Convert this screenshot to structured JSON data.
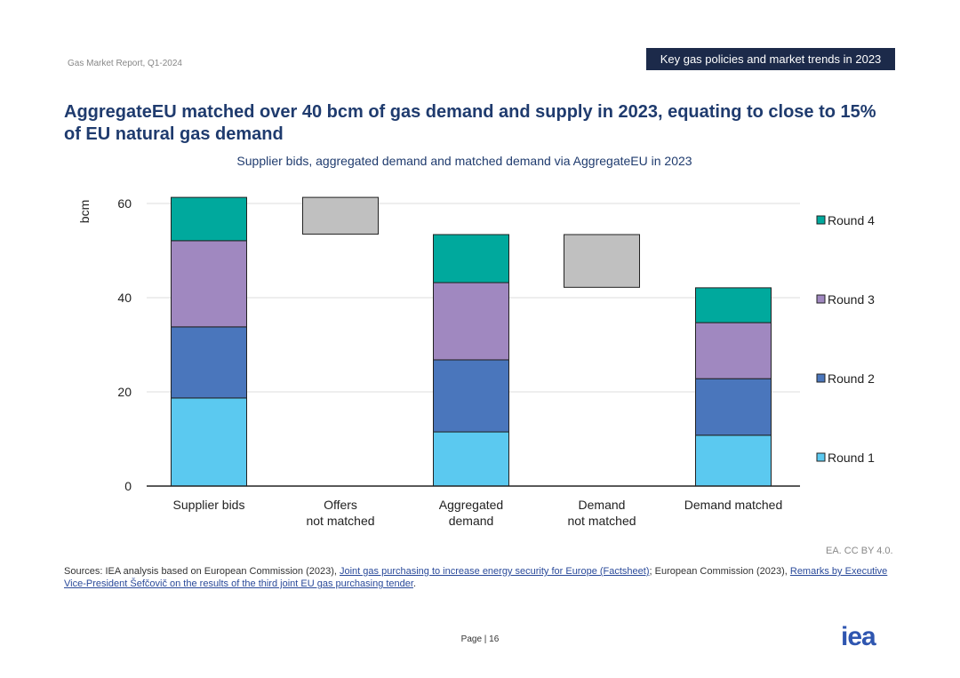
{
  "header": {
    "report": "Gas Market Report, Q1-2024",
    "section": "Key gas policies and market trends in 2023"
  },
  "title": "AggregateEU matched over 40 bcm of gas demand and supply in 2023, equating to close to 15% of EU natural gas demand",
  "chart_data": {
    "type": "bar",
    "title": "Supplier bids, aggregated demand and matched demand via AggregateEU in 2023",
    "ylabel": "bcm",
    "ylim": [
      0,
      60
    ],
    "yticks": [
      0,
      20,
      40,
      60
    ],
    "categories": [
      [
        "Supplier bids"
      ],
      [
        "Offers",
        "not matched"
      ],
      [
        "Aggregated",
        "demand"
      ],
      [
        "Demand",
        "not matched"
      ],
      [
        "Demand matched"
      ]
    ],
    "series": [
      {
        "name": "Round 1",
        "color": "#5bc9f0",
        "values": [
          18.7,
          0,
          11.5,
          0,
          10.8
        ]
      },
      {
        "name": "Round 2",
        "color": "#4a76bc",
        "values": [
          15.1,
          0,
          15.3,
          0,
          12.0
        ]
      },
      {
        "name": "Round 3",
        "color": "#a088c0",
        "values": [
          18.3,
          0,
          16.4,
          0,
          11.9
        ]
      },
      {
        "name": "Round 4",
        "color": "#00a99d",
        "values": [
          9.2,
          0,
          10.2,
          0,
          7.4
        ]
      }
    ],
    "floating": [
      {
        "category_index": 1,
        "from": 53.5,
        "to": 61.3,
        "color": "#c0c0c0"
      },
      {
        "category_index": 3,
        "from": 42.2,
        "to": 53.4,
        "color": "#c0c0c0"
      }
    ],
    "legend": "right"
  },
  "credit": "EA. CC BY 4.0.",
  "sources": {
    "prefix": "Sources: IEA analysis based on European Commission (2023), ",
    "link1": "Joint gas purchasing to increase energy security for Europe (Factsheet)",
    "mid": "; European Commission (2023), ",
    "link2": "Remarks by Executive Vice-President Šefčovič on the results of the third joint EU gas purchasing tender",
    "suffix": "."
  },
  "page": {
    "label": "Page | 16"
  },
  "logo": "iea"
}
